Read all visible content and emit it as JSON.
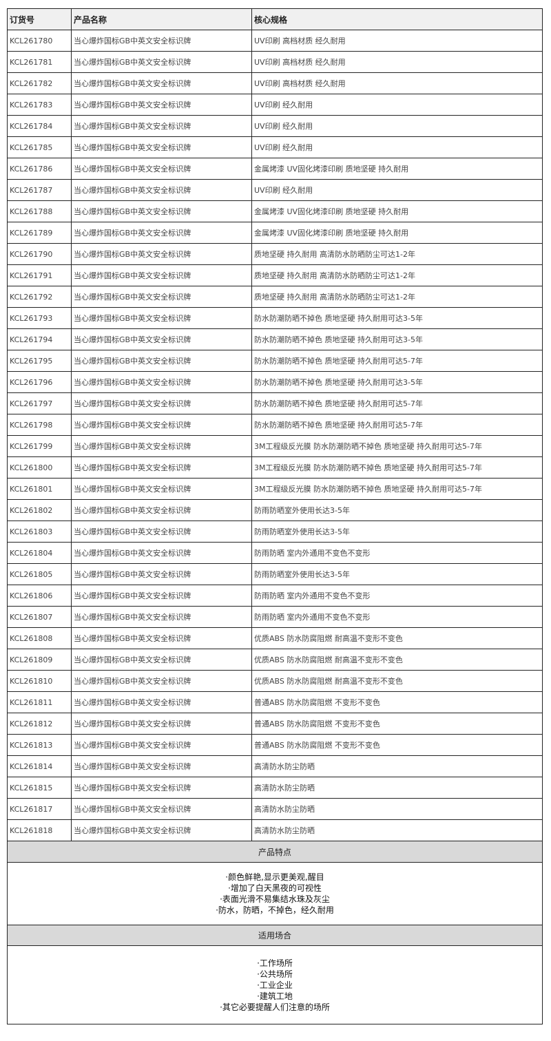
{
  "headers": [
    "订货号",
    "产品名称",
    "核心规格"
  ],
  "rows": [
    [
      "KCL261780",
      "当心爆炸国标GB中英文安全标识牌",
      "UV印刷 高档材质 经久耐用"
    ],
    [
      "KCL261781",
      "当心爆炸国标GB中英文安全标识牌",
      "UV印刷 高档材质 经久耐用"
    ],
    [
      "KCL261782",
      "当心爆炸国标GB中英文安全标识牌",
      "UV印刷 高档材质 经久耐用"
    ],
    [
      "KCL261783",
      "当心爆炸国标GB中英文安全标识牌",
      "UV印刷 经久耐用"
    ],
    [
      "KCL261784",
      "当心爆炸国标GB中英文安全标识牌",
      "UV印刷 经久耐用"
    ],
    [
      "KCL261785",
      "当心爆炸国标GB中英文安全标识牌",
      "UV印刷 经久耐用"
    ],
    [
      "KCL261786",
      "当心爆炸国标GB中英文安全标识牌",
      "金属烤漆 UV固化烤漆印刷 质地坚硬 持久耐用"
    ],
    [
      "KCL261787",
      "当心爆炸国标GB中英文安全标识牌",
      "UV印刷 经久耐用"
    ],
    [
      "KCL261788",
      "当心爆炸国标GB中英文安全标识牌",
      "金属烤漆 UV固化烤漆印刷 质地坚硬 持久耐用"
    ],
    [
      "KCL261789",
      "当心爆炸国标GB中英文安全标识牌",
      "金属烤漆 UV固化烤漆印刷 质地坚硬 持久耐用"
    ],
    [
      "KCL261790",
      "当心爆炸国标GB中英文安全标识牌",
      "质地坚硬 持久耐用 高清防水防晒防尘可达1-2年"
    ],
    [
      "KCL261791",
      "当心爆炸国标GB中英文安全标识牌",
      "质地坚硬 持久耐用 高清防水防晒防尘可达1-2年"
    ],
    [
      "KCL261792",
      "当心爆炸国标GB中英文安全标识牌",
      "质地坚硬 持久耐用 高清防水防晒防尘可达1-2年"
    ],
    [
      "KCL261793",
      "当心爆炸国标GB中英文安全标识牌",
      "防水防潮防晒不掉色 质地坚硬 持久耐用可达3-5年"
    ],
    [
      "KCL261794",
      "当心爆炸国标GB中英文安全标识牌",
      "防水防潮防晒不掉色 质地坚硬 持久耐用可达3-5年"
    ],
    [
      "KCL261795",
      "当心爆炸国标GB中英文安全标识牌",
      "防水防潮防晒不掉色 质地坚硬 持久耐用可达5-7年"
    ],
    [
      "KCL261796",
      "当心爆炸国标GB中英文安全标识牌",
      "防水防潮防晒不掉色 质地坚硬 持久耐用可达3-5年"
    ],
    [
      "KCL261797",
      "当心爆炸国标GB中英文安全标识牌",
      "防水防潮防晒不掉色 质地坚硬 持久耐用可达5-7年"
    ],
    [
      "KCL261798",
      "当心爆炸国标GB中英文安全标识牌",
      "防水防潮防晒不掉色 质地坚硬 持久耐用可达5-7年"
    ],
    [
      "KCL261799",
      "当心爆炸国标GB中英文安全标识牌",
      "3M工程级反光膜 防水防潮防晒不掉色 质地坚硬 持久耐用可达5-7年"
    ],
    [
      "KCL261800",
      "当心爆炸国标GB中英文安全标识牌",
      "3M工程级反光膜 防水防潮防晒不掉色 质地坚硬 持久耐用可达5-7年"
    ],
    [
      "KCL261801",
      "当心爆炸国标GB中英文安全标识牌",
      "3M工程级反光膜 防水防潮防晒不掉色 质地坚硬 持久耐用可达5-7年"
    ],
    [
      "KCL261802",
      "当心爆炸国标GB中英文安全标识牌",
      "防雨防晒室外使用长达3-5年"
    ],
    [
      "KCL261803",
      "当心爆炸国标GB中英文安全标识牌",
      "防雨防晒室外使用长达3-5年"
    ],
    [
      "KCL261804",
      "当心爆炸国标GB中英文安全标识牌",
      "防雨防晒 室内外通用不变色不变形"
    ],
    [
      "KCL261805",
      "当心爆炸国标GB中英文安全标识牌",
      "防雨防晒室外使用长达3-5年"
    ],
    [
      "KCL261806",
      "当心爆炸国标GB中英文安全标识牌",
      "防雨防晒 室内外通用不变色不变形"
    ],
    [
      "KCL261807",
      "当心爆炸国标GB中英文安全标识牌",
      "防雨防晒 室内外通用不变色不变形"
    ],
    [
      "KCL261808",
      "当心爆炸国标GB中英文安全标识牌",
      "优质ABS 防水防腐阻燃 耐高温不变形不变色"
    ],
    [
      "KCL261809",
      "当心爆炸国标GB中英文安全标识牌",
      "优质ABS 防水防腐阻燃 耐高温不变形不变色"
    ],
    [
      "KCL261810",
      "当心爆炸国标GB中英文安全标识牌",
      "优质ABS 防水防腐阻燃 耐高温不变形不变色"
    ],
    [
      "KCL261811",
      "当心爆炸国标GB中英文安全标识牌",
      "普通ABS 防水防腐阻燃 不变形不变色"
    ],
    [
      "KCL261812",
      "当心爆炸国标GB中英文安全标识牌",
      "普通ABS 防水防腐阻燃 不变形不变色"
    ],
    [
      "KCL261813",
      "当心爆炸国标GB中英文安全标识牌",
      "普通ABS 防水防腐阻燃 不变形不变色"
    ],
    [
      "KCL261814",
      "当心爆炸国标GB中英文安全标识牌",
      "高清防水防尘防晒"
    ],
    [
      "KCL261815",
      "当心爆炸国标GB中英文安全标识牌",
      "高清防水防尘防晒"
    ],
    [
      "KCL261817",
      "当心爆炸国标GB中英文安全标识牌",
      "高清防水防尘防晒"
    ],
    [
      "KCL261818",
      "当心爆炸国标GB中英文安全标识牌",
      "高清防水防尘防晒"
    ]
  ],
  "features": {
    "title": "产品特点",
    "items": [
      "·颜色鲜艳,显示更美观,醒目",
      "·增加了白天黑夜的可视性",
      "·表面光滑不易集结水珠及灰尘",
      "·防水，防晒，不掉色，经久耐用"
    ]
  },
  "places": {
    "title": "适用场合",
    "items": [
      "·工作场所",
      "·公共场所",
      "·工业企业",
      "·建筑工地",
      "·其它必要提醒人们注意的场所"
    ]
  }
}
